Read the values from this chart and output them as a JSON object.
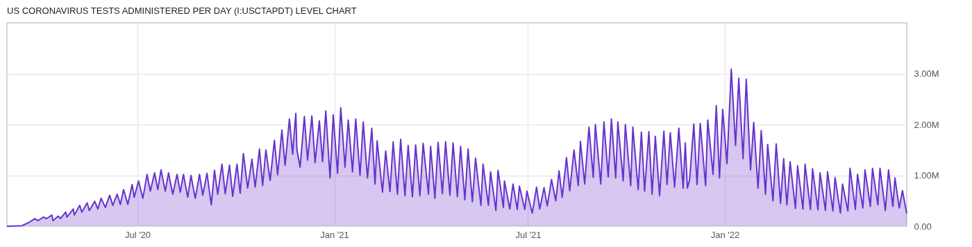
{
  "chart_data": {
    "type": "area",
    "title": "US CORONAVIRUS TESTS ADMINISTERED PER DAY (I:USCTAPDT) LEVEL CHART",
    "x": [
      "2020-03-01",
      "2020-03-15",
      "2020-03-22",
      "2020-03-27",
      "2020-03-30",
      "2020-04-04",
      "2020-04-07",
      "2020-04-12",
      "2020-04-13",
      "2020-04-18",
      "2020-04-20",
      "2020-04-25",
      "2020-04-26",
      "2020-05-02",
      "2020-05-03",
      "2020-05-08",
      "2020-05-10",
      "2020-05-15",
      "2020-05-17",
      "2020-05-22",
      "2020-05-25",
      "2020-05-28",
      "2020-06-01",
      "2020-06-05",
      "2020-06-08",
      "2020-06-12",
      "2020-06-15",
      "2020-06-18",
      "2020-06-22",
      "2020-06-26",
      "2020-06-28",
      "2020-07-02",
      "2020-07-06",
      "2020-07-10",
      "2020-07-13",
      "2020-07-17",
      "2020-07-20",
      "2020-07-23",
      "2020-07-27",
      "2020-07-30",
      "2020-08-03",
      "2020-08-07",
      "2020-08-10",
      "2020-08-13",
      "2020-08-17",
      "2020-08-20",
      "2020-08-24",
      "2020-08-28",
      "2020-08-31",
      "2020-09-04",
      "2020-09-08",
      "2020-09-11",
      "2020-09-14",
      "2020-09-18",
      "2020-09-21",
      "2020-09-25",
      "2020-09-28",
      "2020-10-02",
      "2020-10-05",
      "2020-10-08",
      "2020-10-12",
      "2020-10-16",
      "2020-10-19",
      "2020-10-23",
      "2020-10-26",
      "2020-10-29",
      "2020-11-02",
      "2020-11-06",
      "2020-11-09",
      "2020-11-13",
      "2020-11-16",
      "2020-11-20",
      "2020-11-23",
      "2020-11-26",
      "2020-11-27",
      "2020-11-30",
      "2020-12-04",
      "2020-12-07",
      "2020-12-11",
      "2020-12-14",
      "2020-12-18",
      "2020-12-21",
      "2020-12-24",
      "2020-12-28",
      "2020-12-31",
      "2021-01-04",
      "2021-01-07",
      "2021-01-11",
      "2021-01-14",
      "2021-01-18",
      "2021-01-21",
      "2021-01-25",
      "2021-01-28",
      "2021-02-01",
      "2021-02-05",
      "2021-02-08",
      "2021-02-10",
      "2021-02-15",
      "2021-02-18",
      "2021-02-22",
      "2021-02-25",
      "2021-03-01",
      "2021-03-04",
      "2021-03-08",
      "2021-03-11",
      "2021-03-15",
      "2021-03-18",
      "2021-03-22",
      "2021-03-25",
      "2021-03-30",
      "2021-04-01",
      "2021-04-05",
      "2021-04-08",
      "2021-04-12",
      "2021-04-15",
      "2021-04-19",
      "2021-04-22",
      "2021-04-26",
      "2021-04-29",
      "2021-05-03",
      "2021-05-06",
      "2021-05-10",
      "2021-05-13",
      "2021-05-18",
      "2021-05-20",
      "2021-05-25",
      "2021-05-27",
      "2021-06-01",
      "2021-06-03",
      "2021-06-08",
      "2021-06-09",
      "2021-06-14",
      "2021-06-17",
      "2021-06-21",
      "2021-06-23",
      "2021-06-28",
      "2021-06-30",
      "2021-07-05",
      "2021-07-09",
      "2021-07-12",
      "2021-07-16",
      "2021-07-19",
      "2021-07-23",
      "2021-07-27",
      "2021-07-30",
      "2021-08-02",
      "2021-08-06",
      "2021-08-09",
      "2021-08-13",
      "2021-08-17",
      "2021-08-19",
      "2021-08-23",
      "2021-08-27",
      "2021-08-31",
      "2021-09-02",
      "2021-09-07",
      "2021-09-10",
      "2021-09-14",
      "2021-09-17",
      "2021-09-21",
      "2021-09-23",
      "2021-09-28",
      "2021-09-30",
      "2021-10-05",
      "2021-10-07",
      "2021-10-12",
      "2021-10-15",
      "2021-10-18",
      "2021-10-22",
      "2021-10-25",
      "2021-10-28",
      "2021-11-01",
      "2021-11-05",
      "2021-11-08",
      "2021-11-11",
      "2021-11-15",
      "2021-11-19",
      "2021-11-23",
      "2021-11-25",
      "2021-11-27",
      "2021-11-29",
      "2021-12-03",
      "2021-12-06",
      "2021-12-09",
      "2021-12-14",
      "2021-12-16",
      "2021-12-21",
      "2021-12-24",
      "2021-12-27",
      "2021-12-30",
      "2022-01-03",
      "2022-01-07",
      "2022-01-11",
      "2022-01-14",
      "2022-01-18",
      "2022-01-21",
      "2022-01-25",
      "2022-01-28",
      "2022-02-01",
      "2022-02-04",
      "2022-02-08",
      "2022-02-10",
      "2022-02-15",
      "2022-02-18",
      "2022-02-22",
      "2022-02-25",
      "2022-02-28",
      "2022-03-03",
      "2022-03-08",
      "2022-03-10",
      "2022-03-15",
      "2022-03-17",
      "2022-03-22",
      "2022-03-24",
      "2022-03-29",
      "2022-03-31",
      "2022-04-05",
      "2022-04-07",
      "2022-04-12",
      "2022-04-14",
      "2022-04-19",
      "2022-04-21",
      "2022-04-26",
      "2022-04-28",
      "2022-05-03",
      "2022-05-05",
      "2022-05-10",
      "2022-05-12",
      "2022-05-17",
      "2022-05-19",
      "2022-05-24",
      "2022-05-26",
      "2022-05-31",
      "2022-06-03",
      "2022-06-07",
      "2022-06-09",
      "2022-06-13",
      "2022-06-16",
      "2022-06-20"
    ],
    "series": [
      {
        "color": "#6633cc",
        "values": [
          0,
          10000,
          80000,
          150000,
          110000,
          180000,
          150000,
          220000,
          110000,
          200000,
          150000,
          280000,
          180000,
          340000,
          220000,
          410000,
          280000,
          460000,
          310000,
          490000,
          340000,
          550000,
          370000,
          610000,
          410000,
          630000,
          430000,
          720000,
          430000,
          820000,
          570000,
          890000,
          550000,
          1020000,
          690000,
          1050000,
          720000,
          1110000,
          690000,
          1050000,
          630000,
          1020000,
          670000,
          1020000,
          570000,
          1000000,
          550000,
          1020000,
          610000,
          1040000,
          420000,
          1100000,
          630000,
          1220000,
          640000,
          1200000,
          590000,
          1220000,
          650000,
          1430000,
          750000,
          1320000,
          770000,
          1520000,
          800000,
          1500000,
          900000,
          1690000,
          1010000,
          1890000,
          1200000,
          2110000,
          1420000,
          2220000,
          1510000,
          1160000,
          2160000,
          1300000,
          2170000,
          1250000,
          2070000,
          1270000,
          2270000,
          950000,
          2190000,
          1040000,
          2330000,
          1160000,
          2090000,
          1070000,
          2110000,
          1000000,
          2050000,
          950000,
          1930000,
          830000,
          1680000,
          670000,
          1480000,
          680000,
          1660000,
          630000,
          1710000,
          600000,
          1590000,
          580000,
          1600000,
          600000,
          1630000,
          630000,
          1570000,
          550000,
          1650000,
          640000,
          1660000,
          610000,
          1640000,
          580000,
          1570000,
          520000,
          1520000,
          480000,
          1340000,
          410000,
          1220000,
          410000,
          1070000,
          310000,
          1100000,
          370000,
          890000,
          340000,
          830000,
          330000,
          790000,
          330000,
          690000,
          260000,
          770000,
          340000,
          760000,
          400000,
          920000,
          500000,
          1090000,
          570000,
          1350000,
          700000,
          1500000,
          800000,
          1670000,
          830000,
          1950000,
          960000,
          2000000,
          830000,
          2050000,
          970000,
          2110000,
          950000,
          2050000,
          890000,
          2000000,
          800000,
          1950000,
          720000,
          1850000,
          690000,
          1860000,
          630000,
          1770000,
          600000,
          1870000,
          820000,
          1840000,
          770000,
          1930000,
          750000,
          1640000,
          750000,
          910000,
          2010000,
          820000,
          2020000,
          800000,
          2090000,
          1020000,
          2370000,
          950000,
          2300000,
          1230000,
          3090000,
          1590000,
          2910000,
          1330000,
          2890000,
          1110000,
          2040000,
          750000,
          1880000,
          630000,
          1610000,
          500000,
          1620000,
          450000,
          1330000,
          420000,
          1270000,
          350000,
          1190000,
          340000,
          1220000,
          330000,
          1130000,
          320000,
          1050000,
          310000,
          1070000,
          300000,
          960000,
          260000,
          830000,
          300000,
          1140000,
          330000,
          1020000,
          360000,
          1110000,
          390000,
          1140000,
          420000,
          1140000,
          310000,
          1110000,
          390000,
          950000,
          360000,
          700000,
          250000
        ]
      }
    ],
    "xlim": [
      "2020-03-01",
      "2022-06-20"
    ],
    "xticks": [
      {
        "value": "2020-07-01",
        "label": "Jul '20"
      },
      {
        "value": "2021-01-01",
        "label": "Jan '21"
      },
      {
        "value": "2021-07-01",
        "label": "Jul '21"
      },
      {
        "value": "2022-01-01",
        "label": "Jan '22"
      }
    ],
    "ylim": [
      0,
      4000000
    ],
    "yticks": [
      {
        "value": 0,
        "label": "0.00"
      },
      {
        "value": 1000000,
        "label": "1.00M"
      },
      {
        "value": 2000000,
        "label": "2.00M"
      },
      {
        "value": 3000000,
        "label": "3.00M"
      }
    ],
    "grid": true
  }
}
